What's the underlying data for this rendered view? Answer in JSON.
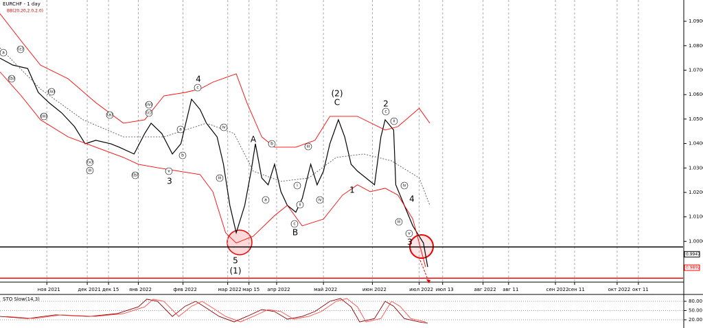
{
  "chart_data": [
    {
      "type": "line",
      "title": "EURCHF - 1 day",
      "subtitle": "BB(20,20,2.0,2.0)",
      "xlim": [
        0,
        321
      ],
      "ylim": [
        0.9833,
        1.0987
      ],
      "yticks": [
        {
          "value": 1.0,
          "label": "1.0000"
        },
        {
          "value": 1.01,
          "label": "1.0100"
        },
        {
          "value": 1.02,
          "label": "1.0200"
        },
        {
          "value": 1.03,
          "label": "1.0300"
        },
        {
          "value": 1.04,
          "label": "1.0400"
        },
        {
          "value": 1.05,
          "label": "1.0500"
        },
        {
          "value": 1.06,
          "label": "1.0600"
        },
        {
          "value": 1.07,
          "label": "1.0700"
        },
        {
          "value": 1.08,
          "label": "1.0800"
        },
        {
          "value": 1.09,
          "label": "1.0900"
        }
      ],
      "xticks": [
        {
          "value": 22,
          "label": "ноя 2021"
        },
        {
          "value": 41,
          "label": "дек 2021"
        },
        {
          "value": 51,
          "label": "дек 15"
        },
        {
          "value": 65,
          "label": "янв 2022"
        },
        {
          "value": 86,
          "label": "фев 2022"
        },
        {
          "value": 107,
          "label": "мар 2022"
        },
        {
          "value": 117,
          "label": "мар 15"
        },
        {
          "value": 130,
          "label": "апр 2022"
        },
        {
          "value": 152,
          "label": "май 2022"
        },
        {
          "value": 175,
          "label": "июн 2022"
        },
        {
          "value": 197,
          "label": "июл 2022"
        },
        {
          "value": 208,
          "label": "июл 13"
        },
        {
          "value": 227,
          "label": "авг 2022"
        },
        {
          "value": 239,
          "label": "авг 11"
        },
        {
          "value": 261,
          "label": "сен 2022"
        },
        {
          "value": 270,
          "label": "сен 11"
        },
        {
          "value": 290,
          "label": "окт 2022"
        },
        {
          "value": 300,
          "label": "окт 11"
        }
      ],
      "grid": true,
      "series": [
        {
          "color": "#000000",
          "x": [
            0,
            6,
            13,
            18,
            23,
            29,
            35,
            40,
            45,
            52,
            56,
            63,
            68,
            71,
            76,
            81,
            85,
            90,
            94,
            97,
            102,
            105,
            108,
            111,
            115,
            118,
            120,
            123,
            126,
            129,
            132,
            135,
            139,
            142,
            146,
            149,
            152,
            155,
            159,
            162,
            165,
            168,
            172,
            176,
            179,
            181,
            185,
            186,
            190,
            194,
            197,
            199,
            201
          ],
          "values": [
            1.0749,
            1.0721,
            1.0707,
            1.0609,
            1.0567,
            1.0525,
            1.0469,
            1.0399,
            1.0413,
            1.0399,
            1.0385,
            1.0357,
            1.0441,
            1.0483,
            1.0441,
            1.0357,
            1.0399,
            1.0581,
            1.0539,
            1.0483,
            1.0427,
            1.0315,
            1.0147,
            1.0035,
            1.0147,
            1.0287,
            1.0399,
            1.0259,
            1.0231,
            1.0315,
            1.0203,
            1.0147,
            1.0119,
            1.0175,
            1.0315,
            1.0231,
            1.0287,
            1.0399,
            1.0497,
            1.0427,
            1.0315,
            1.0287,
            1.0259,
            1.0231,
            1.0427,
            1.0497,
            1.0455,
            1.0231,
            1.0147,
            1.0063,
            1.0021,
            0.9993,
            0.9895
          ]
        },
        {
          "color": "#ff0000",
          "x": [
            0,
            10,
            19,
            32,
            45,
            58,
            68,
            77,
            87,
            94,
            100,
            111,
            116,
            123,
            129,
            139,
            148,
            155,
            161,
            168,
            181,
            187,
            197,
            202
          ],
          "values": [
            1.0931,
            1.0819,
            1.0721,
            1.0665,
            1.0567,
            1.0483,
            1.0497,
            1.0595,
            1.0609,
            1.0623,
            1.0651,
            1.0685,
            1.0567,
            1.0427,
            1.0385,
            1.0385,
            1.0413,
            1.0511,
            1.0511,
            1.0511,
            1.0455,
            1.0469,
            1.0544,
            1.0483
          ]
        },
        {
          "color": "#ff0000",
          "x": [
            0,
            10,
            19,
            32,
            45,
            58,
            65,
            74,
            84,
            94,
            100,
            106,
            111,
            119,
            129,
            135,
            142,
            152,
            161,
            168,
            174,
            181,
            187,
            194,
            200
          ],
          "values": [
            1.0693,
            1.0595,
            1.0497,
            1.0427,
            1.0385,
            1.0343,
            1.0315,
            1.0301,
            1.0287,
            1.0273,
            1.0203,
            1.0035,
            0.9993,
            1.0021,
            1.0105,
            1.0147,
            1.0063,
            1.0091,
            1.0189,
            1.0231,
            1.0203,
            1.0217,
            1.0189,
            1.0091,
            0.9895
          ]
        },
        {
          "color": "#555555",
          "x": [
            0,
            19,
            39,
            58,
            77,
            97,
            110,
            119,
            132,
            145,
            158,
            171,
            184,
            197,
            202
          ],
          "values": [
            1.0791,
            1.0623,
            1.0497,
            1.0427,
            1.0427,
            1.0483,
            1.0441,
            1.0287,
            1.0245,
            1.0259,
            1.0343,
            1.0357,
            1.0329,
            1.0259,
            1.0147
          ]
        }
      ],
      "levels": [
        {
          "value": 0.9977,
          "color": "#000000"
        },
        {
          "value": 0.9849,
          "color": "#ff0000"
        }
      ],
      "price_tags": [
        {
          "value": 0.9947,
          "label": "0.9947",
          "color": "#000000"
        },
        {
          "value": 0.9892,
          "label": "0.9892",
          "color": "#ff0000"
        }
      ],
      "annotations": [
        "4",
        "A",
        "(2)",
        "C",
        "2",
        "4",
        "3",
        "5",
        "(1)",
        "B",
        "1",
        "3",
        "a",
        "(b)",
        "(c)",
        "(iv)",
        "(iii)",
        "(a)",
        "(b)",
        "(v)",
        "iii",
        "(iv)",
        "(c)",
        "c",
        "b",
        "a",
        "v",
        "iii",
        "iv",
        "b",
        "a",
        "c",
        "iii",
        "iv",
        "i",
        "ii",
        "c",
        "ii",
        "iii",
        "v",
        "iv"
      ]
    },
    {
      "type": "line",
      "title": "STO Slow(14,3)",
      "xlim": [
        0,
        321
      ],
      "ylim": [
        0,
        100
      ],
      "yticks": [
        {
          "value": 20,
          "label": "20.00"
        },
        {
          "value": 50,
          "label": "50.00"
        },
        {
          "value": 80,
          "label": "80.00"
        }
      ],
      "series": [
        {
          "color": "#8b0000",
          "x": [
            0,
            13,
            26,
            42,
            55,
            65,
            69,
            74,
            81,
            87,
            92,
            97,
            103,
            110,
            116,
            123,
            129,
            135,
            142,
            148,
            155,
            160,
            165,
            169,
            176,
            181,
            185,
            190,
            197,
            201
          ],
          "values": [
            31,
            24,
            36,
            31,
            40,
            62,
            87,
            80,
            31,
            64,
            80,
            58,
            31,
            13,
            31,
            53,
            47,
            22,
            31,
            47,
            80,
            89,
            62,
            13,
            24,
            80,
            64,
            24,
            13,
            9
          ]
        },
        {
          "color": "#ff4d4d",
          "x": [
            3,
            16,
            29,
            45,
            58,
            68,
            72,
            77,
            84,
            90,
            95,
            100,
            106,
            113,
            119,
            126,
            132,
            138,
            145,
            151,
            158,
            163,
            168,
            172,
            179,
            184,
            188,
            193,
            200
          ],
          "values": [
            31,
            24,
            36,
            31,
            40,
            62,
            87,
            80,
            31,
            64,
            80,
            58,
            31,
            13,
            31,
            53,
            47,
            22,
            31,
            47,
            80,
            89,
            62,
            13,
            24,
            80,
            64,
            24,
            13
          ]
        }
      ]
    }
  ]
}
